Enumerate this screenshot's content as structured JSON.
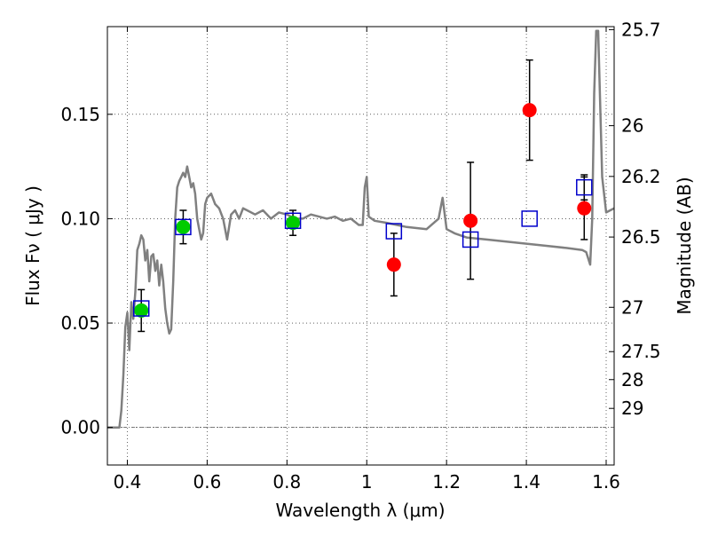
{
  "chart_data": {
    "type": "scatter",
    "title": "",
    "xlabel": "Wavelength  λ (μm)",
    "ylabel": "Flux  Fν  ( μJy )",
    "y2label": "Magnitude (AB)",
    "xlim": [
      0.35,
      1.62
    ],
    "ylim": [
      -0.018,
      0.192
    ],
    "xticks": [
      {
        "value": 0.4,
        "label": "0.4"
      },
      {
        "value": 0.6,
        "label": "0.6"
      },
      {
        "value": 0.8,
        "label": "0.8"
      },
      {
        "value": 1.0,
        "label": "1"
      },
      {
        "value": 1.2,
        "label": "1.2"
      },
      {
        "value": 1.4,
        "label": "1.4"
      },
      {
        "value": 1.6,
        "label": "1.6"
      }
    ],
    "yticks": [
      {
        "value": 0.0,
        "label": "0.00"
      },
      {
        "value": 0.05,
        "label": "0.05"
      },
      {
        "value": 0.1,
        "label": "0.10"
      },
      {
        "value": 0.15,
        "label": "0.15"
      }
    ],
    "y2ticks": [
      {
        "value": 25.7,
        "label": "25.7"
      },
      {
        "value": 26.0,
        "label": "26"
      },
      {
        "value": 26.2,
        "label": "26.2"
      },
      {
        "value": 26.5,
        "label": "26.5"
      },
      {
        "value": 27.0,
        "label": "27"
      },
      {
        "value": 27.5,
        "label": "27.5"
      },
      {
        "value": 28.0,
        "label": "28"
      },
      {
        "value": 29.0,
        "label": "29"
      }
    ],
    "grid": true,
    "colors": {
      "model": "#808080",
      "green": "#00cc00",
      "red": "#ff0000",
      "blue_box": "#0000cc",
      "errorbar": "#000000"
    },
    "series": [
      {
        "marker": "line",
        "color": "#808080",
        "x": [
          0.35,
          0.38,
          0.385,
          0.39,
          0.395,
          0.4,
          0.405,
          0.41,
          0.415,
          0.42,
          0.425,
          0.43,
          0.435,
          0.44,
          0.445,
          0.45,
          0.455,
          0.46,
          0.465,
          0.47,
          0.475,
          0.48,
          0.485,
          0.49,
          0.495,
          0.5,
          0.505,
          0.51,
          0.515,
          0.52,
          0.525,
          0.53,
          0.535,
          0.54,
          0.545,
          0.55,
          0.555,
          0.56,
          0.565,
          0.57,
          0.575,
          0.58,
          0.585,
          0.59,
          0.595,
          0.6,
          0.61,
          0.62,
          0.63,
          0.64,
          0.65,
          0.66,
          0.67,
          0.68,
          0.69,
          0.7,
          0.72,
          0.74,
          0.76,
          0.78,
          0.8,
          0.82,
          0.84,
          0.86,
          0.88,
          0.9,
          0.92,
          0.94,
          0.96,
          0.98,
          0.99,
          0.995,
          1.0,
          1.005,
          1.02,
          1.05,
          1.1,
          1.15,
          1.18,
          1.19,
          1.2,
          1.22,
          1.25,
          1.3,
          1.35,
          1.4,
          1.45,
          1.5,
          1.54,
          1.55,
          1.56,
          1.565,
          1.57,
          1.575,
          1.58,
          1.59,
          1.6,
          1.62
        ],
        "y": [
          0.0,
          0.0,
          0.008,
          0.025,
          0.048,
          0.055,
          0.037,
          0.06,
          0.052,
          0.065,
          0.085,
          0.088,
          0.092,
          0.09,
          0.08,
          0.085,
          0.07,
          0.082,
          0.083,
          0.075,
          0.08,
          0.068,
          0.078,
          0.07,
          0.057,
          0.05,
          0.045,
          0.047,
          0.07,
          0.1,
          0.115,
          0.118,
          0.12,
          0.122,
          0.12,
          0.125,
          0.12,
          0.115,
          0.117,
          0.112,
          0.1,
          0.095,
          0.09,
          0.093,
          0.107,
          0.11,
          0.112,
          0.107,
          0.105,
          0.1,
          0.09,
          0.102,
          0.104,
          0.1,
          0.105,
          0.104,
          0.102,
          0.104,
          0.1,
          0.103,
          0.102,
          0.1,
          0.1,
          0.102,
          0.101,
          0.1,
          0.101,
          0.099,
          0.1,
          0.097,
          0.097,
          0.115,
          0.12,
          0.101,
          0.099,
          0.098,
          0.096,
          0.095,
          0.1,
          0.11,
          0.095,
          0.093,
          0.091,
          0.09,
          0.089,
          0.088,
          0.087,
          0.086,
          0.085,
          0.084,
          0.078,
          0.1,
          0.16,
          0.19,
          0.19,
          0.12,
          0.103,
          0.105
        ]
      },
      {
        "marker": "circle",
        "color": "#00cc00",
        "x": [
          0.435,
          0.54,
          0.815
        ],
        "y": [
          0.056,
          0.096,
          0.098
        ],
        "err": [
          0.01,
          0.008,
          0.006
        ]
      },
      {
        "marker": "circle",
        "color": "#ff0000",
        "x": [
          1.068,
          1.26,
          1.408,
          1.545
        ],
        "y": [
          0.078,
          0.099,
          0.152,
          0.105
        ],
        "err": [
          0.015,
          0.028,
          0.024,
          0.015
        ]
      },
      {
        "marker": "open-square",
        "color": "#0000cc",
        "x": [
          0.435,
          0.54,
          0.815,
          1.068,
          1.26,
          1.408,
          1.545
        ],
        "y": [
          0.057,
          0.096,
          0.099,
          0.094,
          0.09,
          0.1,
          0.115
        ],
        "err": [
          null,
          null,
          null,
          null,
          null,
          null,
          0.006
        ]
      }
    ]
  }
}
